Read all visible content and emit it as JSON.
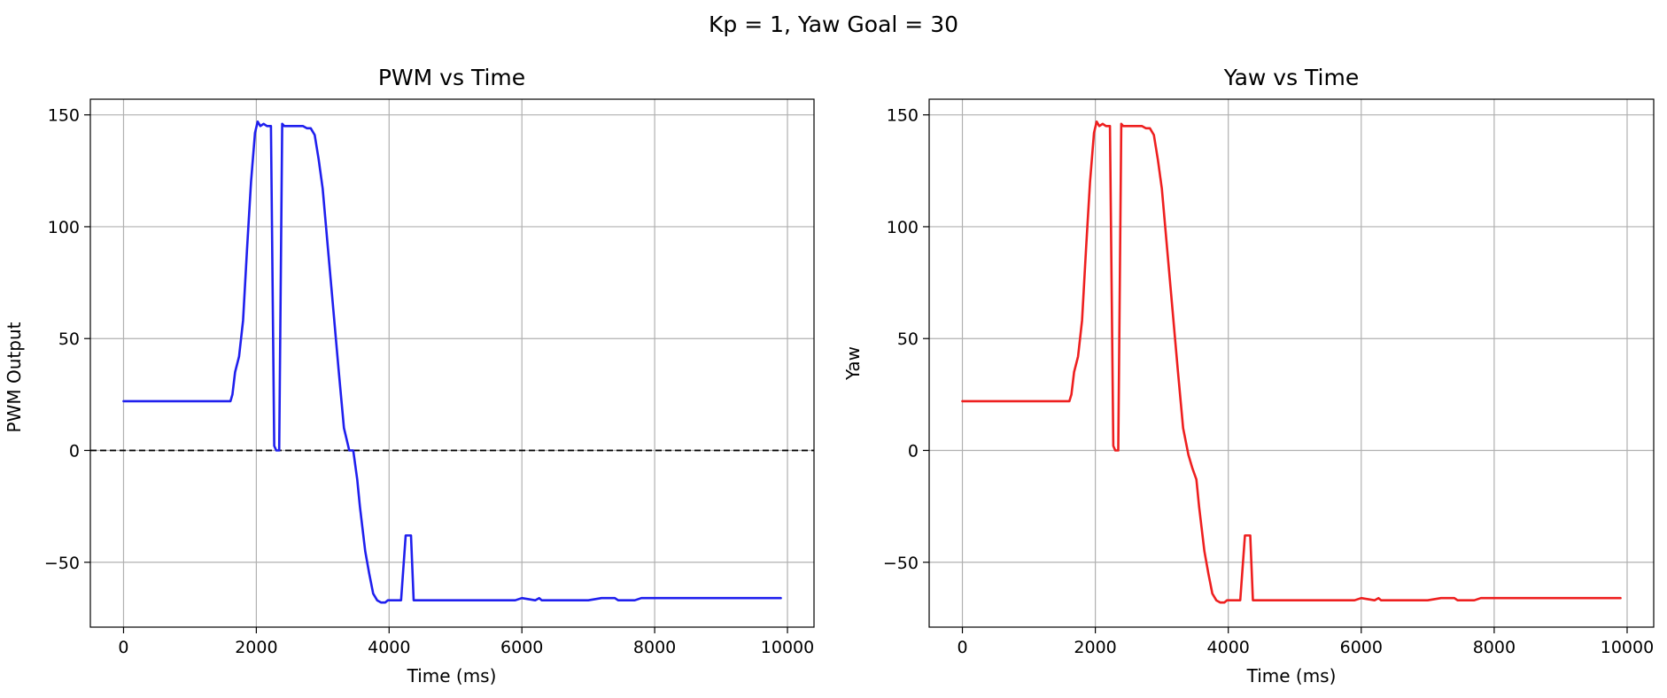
{
  "figure": {
    "suptitle": "Kp = 1, Yaw Goal = 30"
  },
  "chart_data": [
    {
      "type": "line",
      "title": "PWM vs Time",
      "xlabel": "Time (ms)",
      "ylabel": "PWM Output",
      "xlim": [
        -500,
        10400
      ],
      "ylim": [
        -79,
        157
      ],
      "xticks": [
        0,
        2000,
        4000,
        6000,
        8000,
        10000
      ],
      "yticks": [
        -50,
        0,
        50,
        100,
        150
      ],
      "xtick_labels": [
        "0",
        "2000",
        "4000",
        "6000",
        "8000",
        "10000"
      ],
      "ytick_labels": [
        "−50",
        "0",
        "50",
        "100",
        "150"
      ],
      "grid": true,
      "reference_line": {
        "y": 0,
        "style": "dashed",
        "color": "#000000"
      },
      "series": [
        {
          "color": "#1f1fee",
          "x": [
            0,
            1550,
            1610,
            1640,
            1680,
            1740,
            1800,
            1860,
            1920,
            1980,
            2020,
            2060,
            2110,
            2160,
            2220,
            2270,
            2300,
            2345,
            2390,
            2420,
            2480,
            2540,
            2620,
            2700,
            2760,
            2820,
            2880,
            2940,
            3000,
            3080,
            3160,
            3240,
            3320,
            3400,
            3460,
            3520,
            3560,
            3600,
            3640,
            3700,
            3760,
            3820,
            3880,
            3940,
            3980,
            4020,
            4070,
            4120,
            4180,
            4250,
            4330,
            4370,
            4420,
            4480,
            4600,
            5000,
            5500,
            5900,
            6000,
            6200,
            6260,
            6300,
            7000,
            7200,
            7400,
            7450,
            7700,
            7800,
            9900
          ],
          "values": [
            22,
            22,
            22,
            25,
            35,
            42,
            58,
            90,
            120,
            142,
            147,
            145,
            146,
            145,
            145,
            2,
            0,
            0,
            146,
            145,
            145,
            145,
            145,
            145,
            144,
            144,
            141,
            130,
            117,
            90,
            63,
            36,
            10,
            0,
            0,
            -13,
            -25,
            -35,
            -45,
            -55,
            -64,
            -67,
            -68,
            -68,
            -67,
            -67,
            -67,
            -67,
            -67,
            -38,
            -38,
            -67,
            -67,
            -67,
            -67,
            -67,
            -67,
            -67,
            -66,
            -67,
            -66,
            -67,
            -67,
            -66,
            -66,
            -67,
            -67,
            -66,
            -66
          ]
        }
      ]
    },
    {
      "type": "line",
      "title": "Yaw vs Time",
      "xlabel": "Time (ms)",
      "ylabel": "Yaw",
      "xlim": [
        -500,
        10400
      ],
      "ylim": [
        -79,
        157
      ],
      "xticks": [
        0,
        2000,
        4000,
        6000,
        8000,
        10000
      ],
      "yticks": [
        -50,
        0,
        50,
        100,
        150
      ],
      "xtick_labels": [
        "0",
        "2000",
        "4000",
        "6000",
        "8000",
        "10000"
      ],
      "ytick_labels": [
        "−50",
        "0",
        "50",
        "100",
        "150"
      ],
      "grid": true,
      "series": [
        {
          "color": "#ee1f1f",
          "x": [
            0,
            1550,
            1610,
            1640,
            1680,
            1740,
            1800,
            1860,
            1920,
            1980,
            2020,
            2060,
            2110,
            2160,
            2220,
            2270,
            2300,
            2345,
            2390,
            2420,
            2480,
            2540,
            2620,
            2700,
            2760,
            2820,
            2880,
            2940,
            3000,
            3080,
            3160,
            3240,
            3320,
            3400,
            3460,
            3520,
            3560,
            3600,
            3640,
            3700,
            3760,
            3820,
            3880,
            3940,
            3980,
            4020,
            4070,
            4120,
            4180,
            4250,
            4330,
            4370,
            4420,
            4480,
            4600,
            5000,
            5500,
            5900,
            6000,
            6200,
            6260,
            6300,
            7000,
            7200,
            7400,
            7450,
            7700,
            7800,
            9900
          ],
          "values": [
            22,
            22,
            22,
            25,
            35,
            42,
            58,
            90,
            120,
            142,
            147,
            145,
            146,
            145,
            145,
            2,
            0,
            0,
            146,
            145,
            145,
            145,
            145,
            145,
            144,
            144,
            141,
            130,
            117,
            90,
            63,
            36,
            10,
            -2,
            -8,
            -13,
            -25,
            -35,
            -45,
            -55,
            -64,
            -67,
            -68,
            -68,
            -67,
            -67,
            -67,
            -67,
            -67,
            -38,
            -38,
            -67,
            -67,
            -67,
            -67,
            -67,
            -67,
            -67,
            -66,
            -67,
            -66,
            -67,
            -67,
            -66,
            -66,
            -67,
            -67,
            -66,
            -66
          ]
        }
      ]
    }
  ]
}
